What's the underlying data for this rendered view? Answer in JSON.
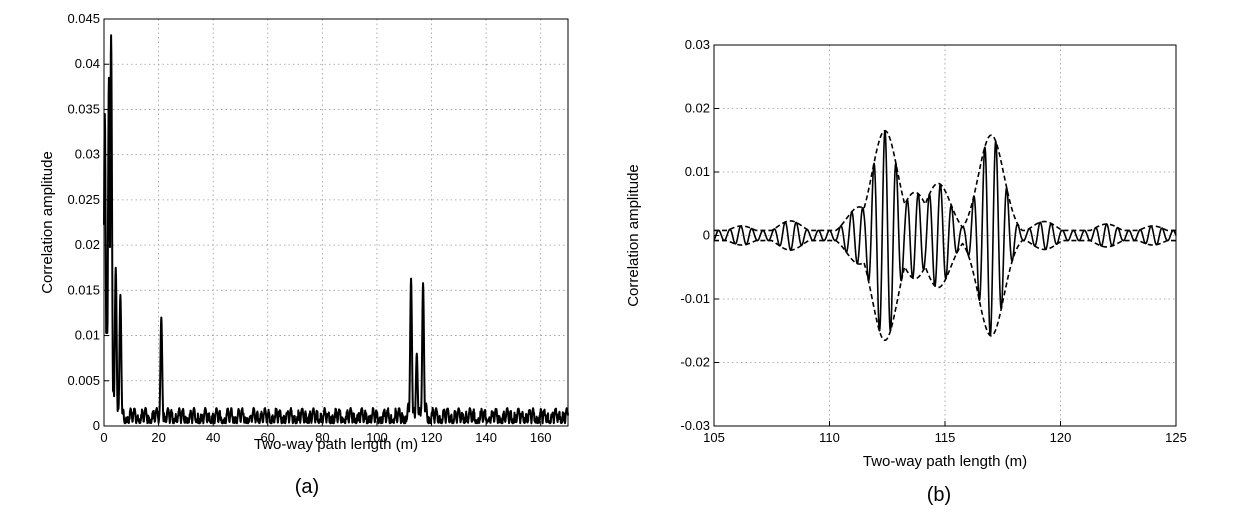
{
  "chart_data": [
    {
      "type": "line",
      "panel_label": "(a)",
      "xlabel": "Two-way path length (m)",
      "ylabel": "Correlation amplitude",
      "xlim": [
        0,
        170
      ],
      "ylim": [
        0,
        0.045
      ],
      "xticks": [
        0,
        20,
        40,
        60,
        80,
        100,
        120,
        140,
        160
      ],
      "yticks": [
        0,
        0.005,
        0.01,
        0.015,
        0.02,
        0.025,
        0.03,
        0.035,
        0.04,
        0.045
      ],
      "xtick_labels": [
        "0",
        "20",
        "40",
        "60",
        "80",
        "100",
        "120",
        "140",
        "160"
      ],
      "ytick_labels": [
        "0",
        "0.005",
        "0.01",
        "0.015",
        "0.02",
        "0.025",
        "0.03",
        "0.035",
        "0.04",
        "0.045"
      ],
      "grid": true,
      "series": [
        {
          "style": "solid",
          "peaks": [
            {
              "x": 0.3,
              "y": 0.0345
            },
            {
              "x": 1.0,
              "y": 0.0125
            },
            {
              "x": 1.8,
              "y": 0.0385
            },
            {
              "x": 2.6,
              "y": 0.0432
            },
            {
              "x": 3.5,
              "y": 0.004
            },
            {
              "x": 4.3,
              "y": 0.0175
            },
            {
              "x": 5.2,
              "y": 0.002
            },
            {
              "x": 6.0,
              "y": 0.0145
            },
            {
              "x": 7.0,
              "y": 0.001
            },
            {
              "x": 21.0,
              "y": 0.012
            },
            {
              "x": 111.5,
              "y": 0.0025
            },
            {
              "x": 112.5,
              "y": 0.0163
            },
            {
              "x": 113.5,
              "y": 0.002
            },
            {
              "x": 114.6,
              "y": 0.008
            },
            {
              "x": 115.6,
              "y": 0.002
            },
            {
              "x": 116.9,
              "y": 0.0158
            },
            {
              "x": 118.0,
              "y": 0.0025
            }
          ],
          "noise_floor": 0.002
        }
      ]
    },
    {
      "type": "line",
      "panel_label": "(b)",
      "xlabel": "Two-way path length (m)",
      "ylabel": "Correlation amplitude",
      "xlim": [
        105,
        125
      ],
      "ylim": [
        -0.03,
        0.03
      ],
      "xticks": [
        105,
        110,
        115,
        120,
        125
      ],
      "yticks": [
        -0.03,
        -0.02,
        -0.01,
        0,
        0.01,
        0.02,
        0.03
      ],
      "xtick_labels": [
        "105",
        "110",
        "115",
        "120",
        "125"
      ],
      "ytick_labels": [
        "-0.03",
        "-0.02",
        "-0.01",
        "0",
        "0.01",
        "0.02",
        "0.03"
      ],
      "grid": true,
      "series": [
        {
          "style": "dashed",
          "role": "envelope",
          "peaks": [
            {
              "x": 106.2,
              "y": 0.0015
            },
            {
              "x": 108.3,
              "y": 0.0023
            },
            {
              "x": 111.3,
              "y": 0.0045
            },
            {
              "x": 112.4,
              "y": 0.0165
            },
            {
              "x": 113.7,
              "y": 0.0068
            },
            {
              "x": 114.7,
              "y": 0.0082
            },
            {
              "x": 117.0,
              "y": 0.0158
            },
            {
              "x": 119.3,
              "y": 0.0022
            },
            {
              "x": 122.0,
              "y": 0.0018
            },
            {
              "x": 124.0,
              "y": 0.0015
            }
          ]
        },
        {
          "style": "solid",
          "role": "oscillation",
          "period": 0.48
        }
      ]
    }
  ]
}
